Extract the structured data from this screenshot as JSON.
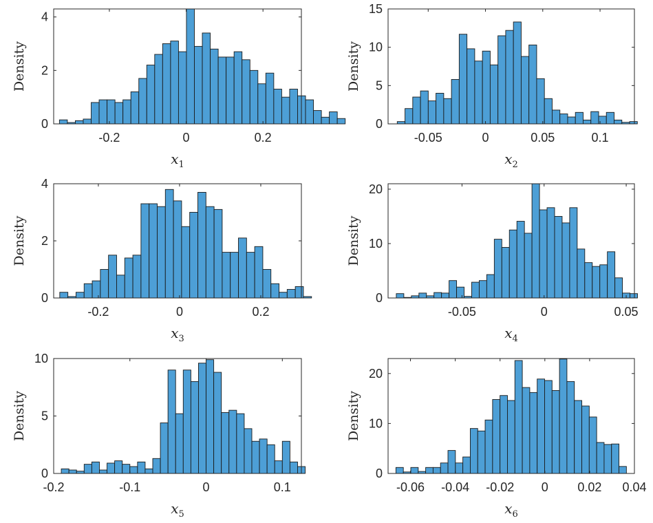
{
  "colors": {
    "bar_fill": "#4d9fd6",
    "bar_edge": "#1a1a1a",
    "axis": "#262626"
  },
  "chart_data": [
    {
      "type": "bar",
      "title": "",
      "xlabel_var": "x",
      "xlabel_sub": "1",
      "ylabel": "Density",
      "xlim": [
        -0.345,
        0.3
      ],
      "ylim": [
        0,
        4.3
      ],
      "xticks": [
        -0.2,
        0,
        0.2
      ],
      "xtick_labels": [
        "-0.2",
        "0",
        "0.2"
      ],
      "yticks": [
        0,
        2,
        4
      ],
      "ytick_labels": [
        "0",
        "2",
        "4"
      ],
      "bin_start": -0.33,
      "bin_width": 0.02067,
      "values": [
        0.15,
        0.05,
        0.12,
        0.18,
        0.8,
        0.9,
        0.9,
        0.8,
        0.9,
        1.2,
        1.7,
        2.2,
        2.6,
        3.0,
        3.1,
        2.7,
        4.3,
        2.9,
        3.4,
        2.8,
        2.5,
        2.5,
        2.7,
        2.4,
        2.0,
        1.5,
        1.9,
        1.3,
        1.0,
        1.3,
        1.05,
        0.9,
        0.5,
        0.25,
        0.45,
        0.2
      ]
    },
    {
      "type": "bar",
      "title": "",
      "xlabel_var": "x",
      "xlabel_sub": "2",
      "ylabel": "Density",
      "xlim": [
        -0.085,
        0.13
      ],
      "ylim": [
        0,
        15
      ],
      "xticks": [
        -0.05,
        0,
        0.05,
        0.1
      ],
      "xtick_labels": [
        "-0.05",
        "0",
        "0.05",
        "0.1"
      ],
      "yticks": [
        0,
        5,
        10,
        15
      ],
      "ytick_labels": [
        "0",
        "5",
        "10",
        "15"
      ],
      "bin_start": -0.077,
      "bin_width": 0.00676,
      "values": [
        0.3,
        2.0,
        3.5,
        4.3,
        3.0,
        4.0,
        3.3,
        5.8,
        11.7,
        9.8,
        8.2,
        9.5,
        7.7,
        11.5,
        12.2,
        13.3,
        8.8,
        10.3,
        5.9,
        3.3,
        1.8,
        1.3,
        0.9,
        1.5,
        0.5,
        1.6,
        1.0,
        1.5,
        0.5,
        0.2,
        0.3
      ]
    },
    {
      "type": "bar",
      "title": "",
      "xlabel_var": "x",
      "xlabel_sub": "3",
      "ylabel": "Density",
      "xlim": [
        -0.31,
        0.3
      ],
      "ylim": [
        0,
        4
      ],
      "xticks": [
        -0.2,
        0,
        0.2
      ],
      "xtick_labels": [
        "-0.2",
        "0",
        "0.2"
      ],
      "yticks": [
        0,
        2,
        4
      ],
      "ytick_labels": [
        "0",
        "2",
        "4"
      ],
      "bin_start": -0.295,
      "bin_width": 0.02,
      "values": [
        0.2,
        0.05,
        0.2,
        0.5,
        0.6,
        1.0,
        1.5,
        0.8,
        1.4,
        1.5,
        3.3,
        3.3,
        3.2,
        3.8,
        3.4,
        2.5,
        3.0,
        3.7,
        3.2,
        3.1,
        1.6,
        1.6,
        2.1,
        1.6,
        1.8,
        1.0,
        0.5,
        0.2,
        0.3,
        0.4,
        0.05
      ]
    },
    {
      "type": "bar",
      "title": "",
      "xlabel_var": "x",
      "xlabel_sub": "4",
      "ylabel": "Density",
      "xlim": [
        -0.095,
        0.055
      ],
      "ylim": [
        0,
        21
      ],
      "xticks": [
        -0.05,
        0,
        0.05
      ],
      "xtick_labels": [
        "-0.05",
        "0",
        "0.05"
      ],
      "yticks": [
        0,
        10,
        20
      ],
      "ytick_labels": [
        "0",
        "10",
        "20"
      ],
      "bin_start": -0.09,
      "bin_width": 0.00459,
      "values": [
        0.8,
        0.1,
        0.4,
        0.9,
        0.4,
        1.0,
        0.9,
        3.2,
        2.0,
        0.3,
        2.9,
        3.2,
        4.3,
        10.8,
        9.3,
        12.5,
        14.1,
        11.9,
        21.2,
        16.2,
        16.6,
        15.0,
        13.8,
        16.6,
        9.0,
        6.5,
        5.8,
        6.1,
        8.5,
        3.7,
        0.9,
        0.8
      ]
    },
    {
      "type": "bar",
      "title": "",
      "xlabel_var": "x",
      "xlabel_sub": "5",
      "ylabel": "Density",
      "xlim": [
        -0.2,
        0.125
      ],
      "ylim": [
        0,
        10
      ],
      "xticks": [
        -0.2,
        -0.1,
        0,
        0.1
      ],
      "xtick_labels": [
        "-0.2",
        "-0.1",
        "0",
        "0.1"
      ],
      "yticks": [
        0,
        5,
        10
      ],
      "ytick_labels": [
        "0",
        "5",
        "10"
      ],
      "bin_start": -0.19,
      "bin_width": 0.01,
      "values": [
        0.4,
        0.3,
        0.2,
        0.8,
        1.0,
        0.3,
        0.9,
        1.1,
        0.8,
        0.6,
        1.0,
        0.4,
        1.3,
        4.4,
        9.0,
        5.2,
        9.0,
        8.0,
        9.6,
        9.9,
        8.8,
        5.3,
        5.5,
        5.2,
        3.9,
        2.8,
        3.0,
        2.5,
        1.1,
        2.8,
        1.0,
        0.6
      ]
    },
    {
      "type": "bar",
      "title": "",
      "xlabel_var": "x",
      "xlabel_sub": "6",
      "ylabel": "Density",
      "xlim": [
        -0.07,
        0.04
      ],
      "ylim": [
        0,
        23
      ],
      "xticks": [
        -0.06,
        -0.04,
        -0.02,
        0,
        0.02,
        0.04
      ],
      "xtick_labels": [
        "-0.06",
        "-0.04",
        "-0.02",
        "0",
        "0.02",
        "0.04"
      ],
      "yticks": [
        0,
        10,
        20
      ],
      "ytick_labels": [
        "0",
        "10",
        "20"
      ],
      "bin_start": -0.0665,
      "bin_width": 0.00332,
      "values": [
        1.2,
        0.3,
        1.2,
        0.4,
        1.2,
        1.2,
        2.1,
        4.6,
        2.1,
        3.3,
        9.0,
        8.5,
        10.7,
        14.8,
        15.6,
        14.6,
        22.6,
        17.2,
        16.2,
        18.9,
        18.6,
        16.6,
        22.9,
        18.4,
        14.6,
        13.5,
        11.3,
        6.2,
        5.8,
        5.9,
        1.4
      ]
    }
  ]
}
